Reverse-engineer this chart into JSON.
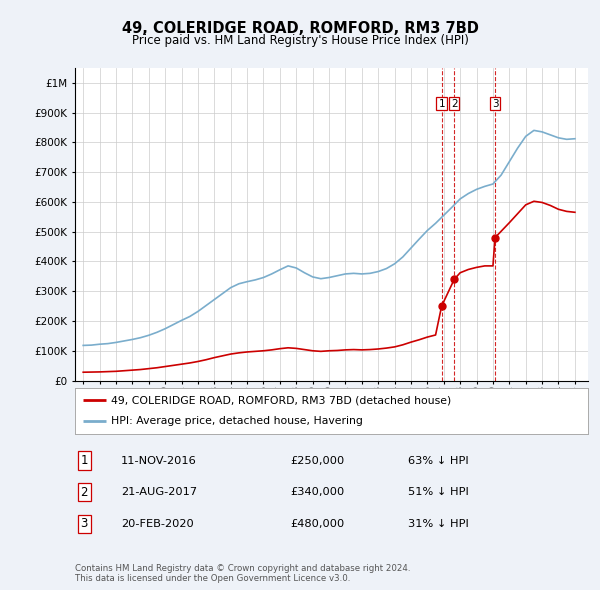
{
  "title": "49, COLERIDGE ROAD, ROMFORD, RM3 7BD",
  "subtitle": "Price paid vs. HM Land Registry's House Price Index (HPI)",
  "hpi_label": "HPI: Average price, detached house, Havering",
  "property_label": "49, COLERIDGE ROAD, ROMFORD, RM3 7BD (detached house)",
  "footer": "Contains HM Land Registry data © Crown copyright and database right 2024.\nThis data is licensed under the Open Government Licence v3.0.",
  "transactions": [
    {
      "num": 1,
      "date": "11-NOV-2016",
      "price": 250000,
      "pct": "63%",
      "dir": "↓"
    },
    {
      "num": 2,
      "date": "21-AUG-2017",
      "price": 340000,
      "pct": "51%",
      "dir": "↓"
    },
    {
      "num": 3,
      "date": "20-FEB-2020",
      "price": 480000,
      "pct": "31%",
      "dir": "↓"
    }
  ],
  "transaction_dates_decimal": [
    2016.87,
    2017.64,
    2020.13
  ],
  "transaction_prices": [
    250000,
    340000,
    480000
  ],
  "vline_dates": [
    2016.87,
    2017.64,
    2020.13
  ],
  "property_color": "#cc0000",
  "hpi_color": "#7aadcc",
  "vline_color": "#cc0000",
  "ylim": [
    0,
    1050000
  ],
  "xlim_start": 1994.5,
  "xlim_end": 2025.8,
  "background_color": "#eef2f8",
  "plot_bg": "#ffffff",
  "grid_color": "#cccccc",
  "years_hpi": [
    1995,
    1995.5,
    1996,
    1996.5,
    1997,
    1997.5,
    1998,
    1998.5,
    1999,
    1999.5,
    2000,
    2000.5,
    2001,
    2001.5,
    2002,
    2002.5,
    2003,
    2003.5,
    2004,
    2004.5,
    2005,
    2005.5,
    2006,
    2006.5,
    2007,
    2007.5,
    2008,
    2008.5,
    2009,
    2009.5,
    2010,
    2010.5,
    2011,
    2011.5,
    2012,
    2012.5,
    2013,
    2013.5,
    2014,
    2014.5,
    2015,
    2015.5,
    2016,
    2016.5,
    2017,
    2017.5,
    2018,
    2018.5,
    2019,
    2019.5,
    2020,
    2020.5,
    2021,
    2021.5,
    2022,
    2022.5,
    2023,
    2023.5,
    2024,
    2024.5,
    2025
  ],
  "hpi_values": [
    118000,
    119000,
    122000,
    124000,
    128000,
    133000,
    138000,
    144000,
    152000,
    162000,
    174000,
    188000,
    202000,
    215000,
    232000,
    252000,
    272000,
    292000,
    312000,
    325000,
    332000,
    338000,
    346000,
    358000,
    372000,
    385000,
    378000,
    362000,
    348000,
    342000,
    346000,
    352000,
    358000,
    360000,
    358000,
    360000,
    366000,
    376000,
    392000,
    415000,
    445000,
    475000,
    504000,
    528000,
    555000,
    582000,
    610000,
    628000,
    642000,
    652000,
    660000,
    690000,
    735000,
    780000,
    820000,
    840000,
    835000,
    825000,
    815000,
    810000,
    812000
  ],
  "prop_years": [
    1995,
    1995.5,
    1996,
    1996.5,
    1997,
    1997.5,
    1998,
    1998.5,
    1999,
    1999.5,
    2000,
    2000.5,
    2001,
    2001.5,
    2002,
    2002.5,
    2003,
    2003.5,
    2004,
    2004.5,
    2005,
    2005.5,
    2006,
    2006.5,
    2007,
    2007.5,
    2008,
    2008.5,
    2009,
    2009.5,
    2010,
    2010.5,
    2011,
    2011.5,
    2012,
    2012.5,
    2013,
    2013.5,
    2014,
    2014.5,
    2015,
    2015.5,
    2016,
    2016.5,
    2016.87,
    2017.64,
    2018,
    2018.5,
    2019,
    2019.5,
    2020,
    2020.13,
    2021,
    2021.5,
    2022,
    2022.5,
    2023,
    2023.5,
    2024,
    2024.5,
    2025
  ],
  "prop_values": [
    28000,
    28500,
    29000,
    30000,
    31000,
    33000,
    35000,
    37000,
    40000,
    43000,
    47000,
    51000,
    55000,
    59000,
    64000,
    70000,
    77000,
    83000,
    89000,
    93000,
    96000,
    98000,
    100000,
    103000,
    107000,
    110000,
    108000,
    104000,
    100000,
    98000,
    100000,
    101000,
    103000,
    104000,
    103000,
    104000,
    106000,
    109000,
    113000,
    120000,
    129000,
    137000,
    146000,
    153000,
    250000,
    340000,
    362000,
    373000,
    380000,
    385000,
    385000,
    480000,
    530000,
    560000,
    590000,
    602000,
    598000,
    588000,
    575000,
    568000,
    565000
  ]
}
